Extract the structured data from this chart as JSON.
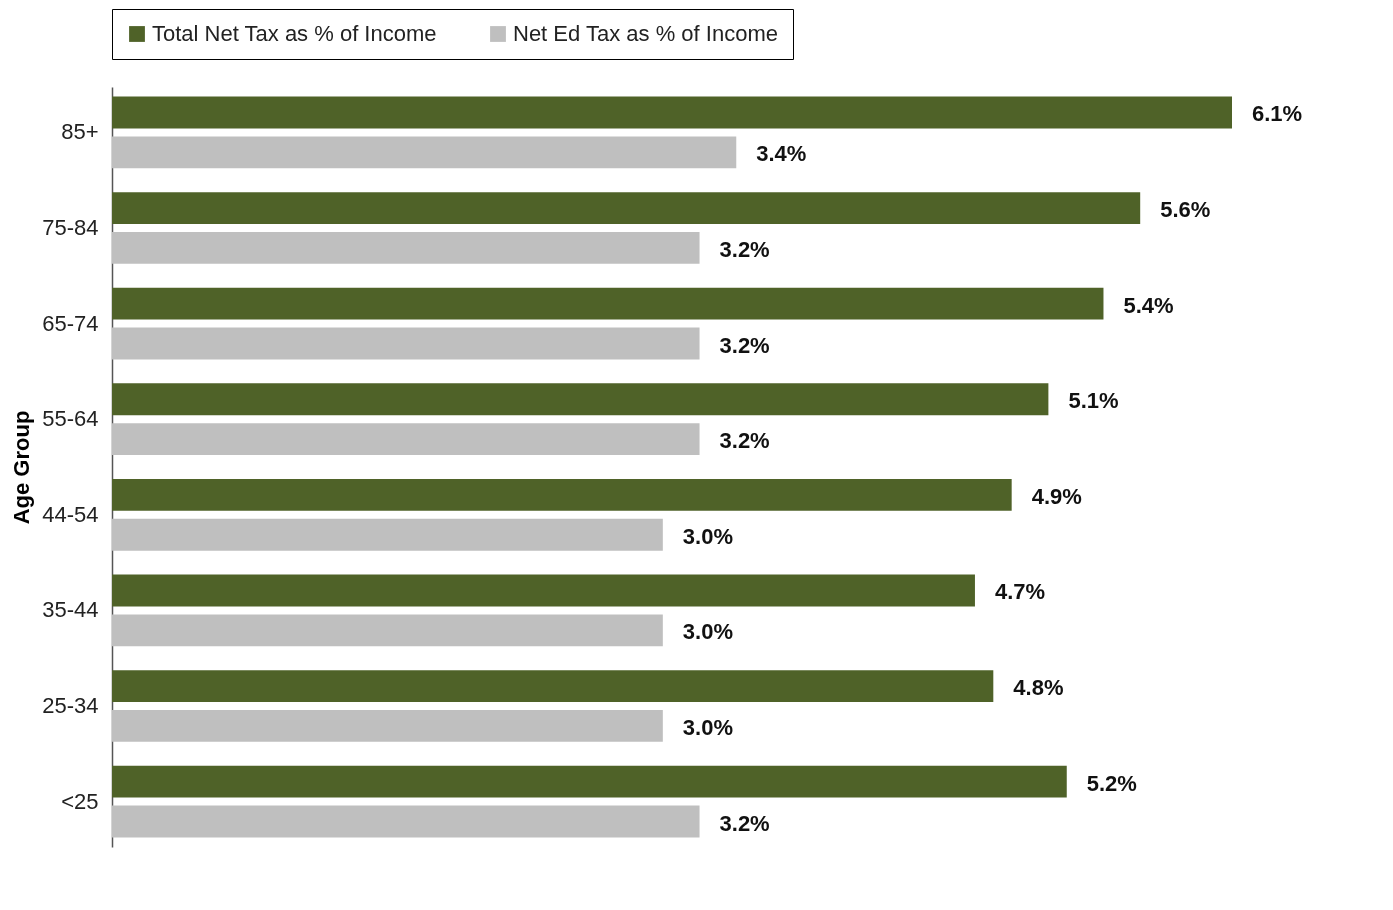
{
  "chart_data": {
    "type": "bar",
    "orientation": "horizontal",
    "ylabel": "Age Group",
    "legend": "top",
    "categories": [
      "85+",
      "75-84",
      "65-74",
      "55-64",
      "44-54",
      "35-44",
      "25-34",
      "<25"
    ],
    "series": [
      {
        "name": "Total Net Tax as % of Income",
        "color": "#4f6228",
        "values": [
          6.1,
          5.6,
          5.4,
          5.1,
          4.9,
          4.7,
          4.8,
          5.2
        ],
        "value_labels": [
          "6.1%",
          "5.6%",
          "5.4%",
          "5.1%",
          "4.9%",
          "4.7%",
          "4.8%",
          "5.2%"
        ]
      },
      {
        "name": "Net Ed Tax as % of Income",
        "color": "#bfbfbf",
        "values": [
          3.4,
          3.2,
          3.2,
          3.2,
          3.0,
          3.0,
          3.0,
          3.2
        ],
        "value_labels": [
          "3.4%",
          "3.2%",
          "3.2%",
          "3.2%",
          "3.0%",
          "3.0%",
          "3.0%",
          "3.2%"
        ]
      }
    ]
  }
}
